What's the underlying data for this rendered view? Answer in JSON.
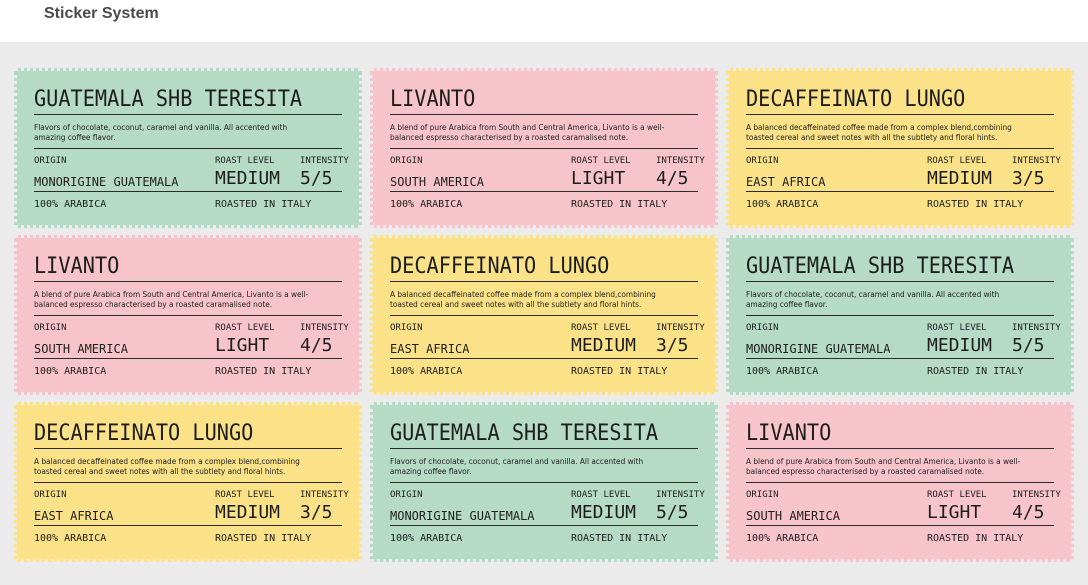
{
  "header": {
    "title": "Sticker System"
  },
  "stickers": [
    {
      "color": "#b5dac6",
      "title": "GUATEMALA SHB TERESITA",
      "description": "Flavors of chocolate, coconut, caramel and vanilla. All accented with amazing coffee flavor.",
      "origin_label": "ORIGIN",
      "origin": "MONORIGINE GUATEMALA",
      "roast_label": "ROAST LEVEL",
      "roast": "MEDIUM",
      "intensity_label": "INTENSITY",
      "intensity": "5/5",
      "footer_left": "100% ARABICA",
      "footer_right": "ROASTED IN ITALY"
    },
    {
      "color": "#f8c4cb",
      "title": "LIVANTO",
      "description": "A blend of pure Arabica from South and Central America, Livanto is a well-balanced espresso characterised by a roasted caramalised note.",
      "origin_label": "ORIGIN",
      "origin": "SOUTH AMERICA",
      "roast_label": "ROAST LEVEL",
      "roast": "LIGHT",
      "intensity_label": "INTENSITY",
      "intensity": "4/5",
      "footer_left": "100% ARABICA",
      "footer_right": "ROASTED IN ITALY"
    },
    {
      "color": "#fbe288",
      "title": "DECAFFEINATO LUNGO",
      "description": "A balanced decaffeinated coffee made from a complex blend,combining toasted cereal and sweet notes with all the subtlety and floral hints.",
      "origin_label": "ORIGIN",
      "origin": "EAST AFRICA",
      "roast_label": "ROAST LEVEL",
      "roast": "MEDIUM",
      "intensity_label": "INTENSITY",
      "intensity": "3/5",
      "footer_left": "100% ARABICA",
      "footer_right": "ROASTED IN ITALY"
    },
    {
      "color": "#f8c4cb",
      "title": "LIVANTO",
      "description": "A blend of pure Arabica from South and Central America, Livanto is a well-balanced espresso characterised by a roasted caramalised note.",
      "origin_label": "ORIGIN",
      "origin": "SOUTH AMERICA",
      "roast_label": "ROAST LEVEL",
      "roast": "LIGHT",
      "intensity_label": "INTENSITY",
      "intensity": "4/5",
      "footer_left": "100% ARABICA",
      "footer_right": "ROASTED IN ITALY"
    },
    {
      "color": "#fbe288",
      "title": "DECAFFEINATO LUNGO",
      "description": "A balanced decaffeinated coffee made from a complex blend,combining toasted cereal and sweet notes with all the subtlety and floral hints.",
      "origin_label": "ORIGIN",
      "origin": "EAST AFRICA",
      "roast_label": "ROAST LEVEL",
      "roast": "MEDIUM",
      "intensity_label": "INTENSITY",
      "intensity": "3/5",
      "footer_left": "100% ARABICA",
      "footer_right": "ROASTED IN ITALY"
    },
    {
      "color": "#b5dac6",
      "title": "GUATEMALA SHB TERESITA",
      "description": "Flavors of chocolate, coconut, caramel and vanilla. All accented with amazing coffee flavor.",
      "origin_label": "ORIGIN",
      "origin": "MONORIGINE GUATEMALA",
      "roast_label": "ROAST LEVEL",
      "roast": "MEDIUM",
      "intensity_label": "INTENSITY",
      "intensity": "5/5",
      "footer_left": "100% ARABICA",
      "footer_right": "ROASTED IN ITALY"
    },
    {
      "color": "#fbe288",
      "title": "DECAFFEINATO LUNGO",
      "description": "A balanced decaffeinated coffee made from a complex blend,combining toasted cereal and sweet notes with all the subtlety and floral hints.",
      "origin_label": "ORIGIN",
      "origin": "EAST AFRICA",
      "roast_label": "ROAST LEVEL",
      "roast": "MEDIUM",
      "intensity_label": "INTENSITY",
      "intensity": "3/5",
      "footer_left": "100% ARABICA",
      "footer_right": "ROASTED IN ITALY"
    },
    {
      "color": "#b5dac6",
      "title": "GUATEMALA SHB TERESITA",
      "description": "Flavors of chocolate, coconut, caramel and vanilla. All accented with amazing coffee flavor.",
      "origin_label": "ORIGIN",
      "origin": "MONORIGINE GUATEMALA",
      "roast_label": "ROAST LEVEL",
      "roast": "MEDIUM",
      "intensity_label": "INTENSITY",
      "intensity": "5/5",
      "footer_left": "100% ARABICA",
      "footer_right": "ROASTED IN ITALY"
    },
    {
      "color": "#f8c4cb",
      "title": "LIVANTO",
      "description": "A blend of pure Arabica from South and Central America, Livanto is a well-balanced espresso characterised by a roasted caramalised note.",
      "origin_label": "ORIGIN",
      "origin": "SOUTH AMERICA",
      "roast_label": "ROAST LEVEL",
      "roast": "LIGHT",
      "intensity_label": "INTENSITY",
      "intensity": "4/5",
      "footer_left": "100% ARABICA",
      "footer_right": "ROASTED IN ITALY"
    }
  ]
}
